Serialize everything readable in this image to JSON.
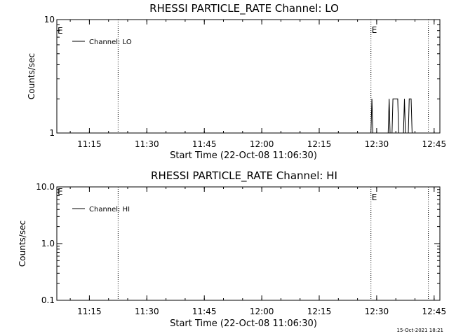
{
  "footer_timestamp": "15-Oct-2021 18:21",
  "chart_data": [
    {
      "type": "line",
      "title": "RHESSI PARTICLE_RATE Channel: LO",
      "xlabel": "Start Time (22-Oct-08 11:06:30)",
      "ylabel": "Counts/sec",
      "yscale": "log",
      "ylim": [
        1,
        10
      ],
      "xlim": [
        "11:06:30",
        "12:46:30"
      ],
      "x_ticks": [
        "11:15",
        "11:30",
        "11:45",
        "12:00",
        "12:15",
        "12:30",
        "12:45"
      ],
      "y_ticks": [
        "1",
        "10"
      ],
      "legend": {
        "placement": "top-left",
        "entries": [
          "Channel: LO"
        ]
      },
      "event_markers": [
        {
          "time": "11:22:30",
          "label": ""
        },
        {
          "time": "12:28:30",
          "label": "E"
        },
        {
          "time": "12:43:30",
          "label": ""
        }
      ],
      "left_marker_label": "E",
      "series": [
        {
          "name": "Channel: LO",
          "points": [
            [
              "12:28:30",
              1
            ],
            [
              "12:28:45",
              2
            ],
            [
              "12:29:00",
              1
            ],
            [
              "12:33:00",
              1
            ],
            [
              "12:33:15",
              2
            ],
            [
              "12:33:30",
              1
            ],
            [
              "12:34:00",
              1
            ],
            [
              "12:34:15",
              2
            ],
            [
              "12:35:30",
              2
            ],
            [
              "12:35:45",
              1
            ],
            [
              "12:37:00",
              1
            ],
            [
              "12:37:15",
              2
            ],
            [
              "12:37:30",
              1
            ],
            [
              "12:38:15",
              1
            ],
            [
              "12:38:30",
              2
            ],
            [
              "12:39:00",
              2
            ],
            [
              "12:39:15",
              1
            ]
          ]
        }
      ]
    },
    {
      "type": "line",
      "title": "RHESSI PARTICLE_RATE Channel: HI",
      "xlabel": "Start Time (22-Oct-08 11:06:30)",
      "ylabel": "Counts/sec",
      "yscale": "log",
      "ylim": [
        0.1,
        10
      ],
      "xlim": [
        "11:06:30",
        "12:46:30"
      ],
      "x_ticks": [
        "11:15",
        "11:30",
        "11:45",
        "12:00",
        "12:15",
        "12:30",
        "12:45"
      ],
      "y_ticks": [
        "0.1",
        "1.0",
        "10.0"
      ],
      "legend": {
        "placement": "top-left",
        "entries": [
          "Channel: HI"
        ]
      },
      "event_markers": [
        {
          "time": "11:22:30",
          "label": ""
        },
        {
          "time": "12:28:30",
          "label": "E"
        },
        {
          "time": "12:43:30",
          "label": ""
        }
      ],
      "left_marker_label": "E",
      "series": [
        {
          "name": "Channel: HI",
          "points": []
        }
      ]
    }
  ]
}
